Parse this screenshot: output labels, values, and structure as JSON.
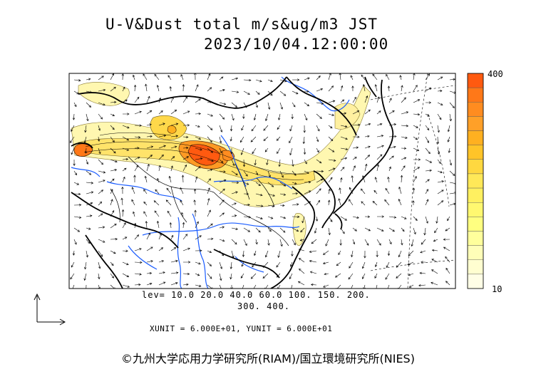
{
  "title": {
    "line1": "U-V&Dust total m/s&ug/m3 JST",
    "line2": "2023/10/04.12:00:00"
  },
  "contour_levels": {
    "line1": "lev= 10.0 20.0 40.0 60.0 100. 150. 200.",
    "line2": "300. 400."
  },
  "units_text": "XUNIT = 6.000E+01, YUNIT = 6.000E+01",
  "colorbar": {
    "max_label": "400",
    "min_label": "10",
    "colors": [
      "#ff5a10",
      "#ff7818",
      "#ff8c20",
      "#ffa028",
      "#ffb020",
      "#ffc428",
      "#ffd840",
      "#ffe858",
      "#fff060",
      "#fff870",
      "#ffff80",
      "#ffff9c",
      "#fffeb8",
      "#fffed0",
      "#fffee6"
    ]
  },
  "colors": {
    "land_boundary": "#000000",
    "river": "#1a5cff",
    "wind_arrow": "#000000",
    "dust_light": "#fff7b0",
    "dust_mid": "#ffd84a",
    "dust_high": "#ff7a1a",
    "dust_peak": "#ff5010"
  },
  "copyright": "©九州大学応用力学研究所(RIAM)/国立環境研究所(NIES)"
}
